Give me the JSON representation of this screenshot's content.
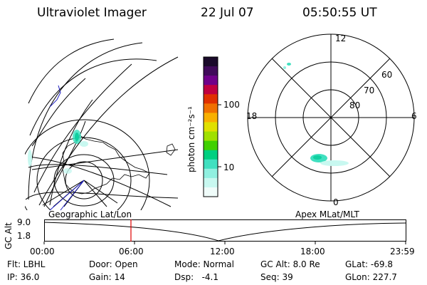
{
  "header": {
    "title": "Ultraviolet Imager",
    "date": "22 Jul 07",
    "time": "05:50:55 UT"
  },
  "left_panel": {
    "label": "Geographic Lat/Lon"
  },
  "right_panel": {
    "label": "Apex MLat/MLT",
    "mlt_labels": {
      "top": "12",
      "left": "18",
      "right": "6",
      "bottom": "0"
    },
    "lat_labels": [
      "60",
      "70",
      "80"
    ]
  },
  "colorbar": {
    "unit_label": "photon cm⁻²s⁻¹",
    "tick_labels": [
      "100",
      "10"
    ],
    "colors": [
      "#1a0a2a",
      "#400a5a",
      "#70008a",
      "#c00040",
      "#e03000",
      "#f07000",
      "#f8b000",
      "#e0e000",
      "#a0e000",
      "#40d000",
      "#00d080",
      "#40e0c0",
      "#90f0e0",
      "#c8f8f0",
      "#f0fcfa"
    ]
  },
  "timeline": {
    "axis_label": "GC Alt",
    "y_labels": [
      "9.0",
      "1.8"
    ],
    "time_labels": [
      "00:00",
      "06:00",
      "12:00",
      "18:00",
      "23:59"
    ],
    "marker_color": "#e00000"
  },
  "info": {
    "filter": "Flt: LBHL",
    "door": "Door: Open",
    "mode": "Mode: Normal",
    "gc_alt": "GC Alt: 8.0 Re",
    "glat": "GLat: -69.8",
    "ip": "IP: 36.0",
    "gain": "Gain: 14",
    "dsp": "Dsp:   -4.1",
    "seq": "Seq: 39",
    "glon": "GLon: 227.7"
  }
}
